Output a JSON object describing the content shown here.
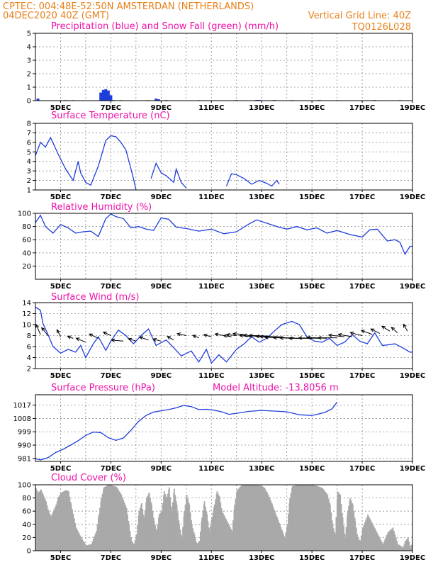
{
  "header": {
    "line1_left": "CPTEC:   004:48E-52:50N   AMSTERDAN (NETHERLANDS)",
    "line2_left": "04DEC2020 40Z (GMT)",
    "line2_right": "Vertical Grid Line: 40Z",
    "model_id": "TQ0126L028"
  },
  "colors": {
    "blue": "#1f3ddb",
    "green": "#2ab52a",
    "magenta": "#ee11aa",
    "orange": "#e8801a",
    "cloud": "#a9a9a9",
    "arrow": "#000000"
  },
  "x_tick_labels": [
    "5DEC",
    "7DEC",
    "9DEC",
    "11DEC",
    "13DEC",
    "15DEC",
    "17DEC",
    "19DEC"
  ],
  "chart_data": [
    {
      "id": "precip",
      "type": "bar",
      "title": "Precipitation (blue) and Snow Fall (green) (mm/h)",
      "x_unit": "day of Dec 2020 (GMT)",
      "xlim": [
        4.0,
        19.0
      ],
      "ylim": [
        0,
        5
      ],
      "yticks": [
        0,
        1,
        2,
        3,
        4,
        5
      ],
      "series": [
        {
          "name": "Precipitation",
          "color": "blue",
          "x": [
            4.1,
            6.6,
            6.7,
            6.8,
            6.9,
            7.0,
            8.8,
            8.9,
            12.8,
            12.9
          ],
          "values": [
            0.15,
            0.6,
            0.8,
            0.85,
            0.75,
            0.4,
            0.15,
            0.1,
            0.05,
            0.05
          ]
        },
        {
          "name": "Snow Fall",
          "color": "green",
          "x": [
            5.2,
            5.5,
            7.1,
            7.4,
            8.5,
            9.2,
            10.5,
            12.0,
            13.5,
            14.2,
            15.3,
            16.0,
            17.5,
            18.5
          ],
          "values": [
            0.04,
            0.04,
            0.05,
            0.04,
            0.04,
            0.05,
            0.04,
            0.05,
            0.05,
            0.04,
            0.05,
            0.04,
            0.05,
            0.04
          ]
        }
      ]
    },
    {
      "id": "temperature",
      "type": "line",
      "title": "Surface Temperature (nC)",
      "xlim": [
        4.0,
        19.0
      ],
      "ylim": [
        1,
        8
      ],
      "yticks": [
        1,
        2,
        3,
        4,
        5,
        6,
        7,
        8
      ],
      "clip_below": true,
      "series": [
        {
          "color": "blue",
          "x": [
            4.0,
            4.2,
            4.4,
            4.6,
            4.9,
            5.2,
            5.5,
            5.7,
            5.8,
            6.0,
            6.2,
            6.5,
            6.8,
            7.0,
            7.2,
            7.4,
            7.6,
            7.8,
            7.9,
            8.0,
            8.3,
            8.6,
            8.8,
            9.0,
            9.2,
            9.5,
            9.6,
            9.8,
            10.0,
            10.1,
            10.5,
            10.7,
            10.9,
            11.3,
            11.6,
            11.8,
            12.0,
            12.3,
            12.6,
            12.9,
            13.2,
            13.4,
            13.6,
            13.7,
            13.9
          ],
          "values": [
            4.6,
            6.0,
            5.5,
            6.5,
            4.8,
            3.2,
            2.0,
            4.0,
            2.8,
            1.8,
            1.5,
            3.5,
            6.2,
            6.7,
            6.6,
            6.0,
            5.2,
            3.2,
            2.2,
            1.0,
            0.5,
            2.2,
            3.8,
            2.8,
            2.5,
            1.8,
            3.2,
            1.8,
            1.2,
            0.6,
            0.8,
            1.6,
            0.7,
            0.5,
            1.4,
            2.7,
            2.6,
            2.2,
            1.6,
            2.0,
            1.7,
            1.4,
            2.0,
            1.6,
            0.8
          ]
        }
      ]
    },
    {
      "id": "humidity",
      "type": "line",
      "title": "Relative Humidity (%)",
      "xlim": [
        4.0,
        19.0
      ],
      "ylim": [
        0,
        100
      ],
      "yticks": [
        20,
        40,
        60,
        80,
        100
      ],
      "series": [
        {
          "color": "blue",
          "x": [
            4.0,
            4.2,
            4.4,
            4.7,
            5.0,
            5.3,
            5.6,
            5.9,
            6.2,
            6.5,
            6.8,
            7.0,
            7.2,
            7.5,
            7.8,
            8.1,
            8.4,
            8.7,
            9.0,
            9.3,
            9.6,
            10.0,
            10.5,
            11.0,
            11.5,
            12.0,
            12.5,
            12.8,
            13.2,
            13.6,
            14.0,
            14.4,
            14.8,
            15.2,
            15.6,
            16.0,
            16.5,
            17.0,
            17.3,
            17.6,
            18.0,
            18.3,
            18.5,
            18.7,
            18.9,
            19.0
          ],
          "values": [
            86,
            97,
            80,
            70,
            83,
            78,
            70,
            72,
            73,
            65,
            92,
            99,
            95,
            92,
            78,
            80,
            76,
            74,
            93,
            91,
            79,
            77,
            73,
            76,
            69,
            72,
            84,
            90,
            85,
            80,
            76,
            80,
            75,
            78,
            70,
            74,
            68,
            64,
            75,
            76,
            58,
            60,
            56,
            38,
            50,
            50
          ]
        }
      ]
    },
    {
      "id": "wind",
      "type": "line",
      "title": "Surface Wind (m/s)",
      "xlim": [
        4.0,
        19.0
      ],
      "ylim": [
        2,
        14
      ],
      "yticks": [
        2,
        4,
        6,
        8,
        10,
        12,
        14
      ],
      "series": [
        {
          "color": "blue",
          "x": [
            4.0,
            4.2,
            4.3,
            4.5,
            4.7,
            5.0,
            5.3,
            5.6,
            5.8,
            6.0,
            6.3,
            6.5,
            6.8,
            7.0,
            7.3,
            7.6,
            7.9,
            8.2,
            8.5,
            8.8,
            9.2,
            9.5,
            9.8,
            10.2,
            10.5,
            10.8,
            11.0,
            11.3,
            11.6,
            12.0,
            12.3,
            12.6,
            12.9,
            13.2,
            13.5,
            13.8,
            14.2,
            14.5,
            14.8,
            15.1,
            15.4,
            15.7,
            16.0,
            16.3,
            16.6,
            16.9,
            17.2,
            17.5,
            17.8,
            18.0,
            18.3,
            18.6,
            18.9,
            19.0
          ],
          "values": [
            13.2,
            12.6,
            10.2,
            8.2,
            6.0,
            4.8,
            5.5,
            5.0,
            6.2,
            4.0,
            6.5,
            7.8,
            5.3,
            7.0,
            9.0,
            8.0,
            6.5,
            8.0,
            9.2,
            6.2,
            7.2,
            5.8,
            4.3,
            5.2,
            3.2,
            5.5,
            3.0,
            4.5,
            3.2,
            5.5,
            6.5,
            7.8,
            6.8,
            7.5,
            8.8,
            10.0,
            10.6,
            10.0,
            7.8,
            7.0,
            6.8,
            7.5,
            6.2,
            6.8,
            8.2,
            7.0,
            6.5,
            8.5,
            6.2,
            6.3,
            6.5,
            5.8,
            5.0,
            5.0
          ]
        }
      ],
      "wind_vectors": {
        "x": [
          4.2,
          4.5,
          5.0,
          5.5,
          6.0,
          6.5,
          7.0,
          7.5,
          8.0,
          8.5,
          9.0,
          9.5,
          10.0,
          10.5,
          11.0,
          11.5,
          11.8,
          12.0,
          12.3,
          12.6,
          13.0,
          13.3,
          13.6,
          13.8,
          14.0,
          14.3,
          14.6,
          15.0,
          15.3,
          15.6,
          16.0,
          16.3,
          16.6,
          17.0,
          17.4,
          17.7,
          18.1,
          18.4,
          18.8
        ],
        "u": [
          -0.22,
          -0.32,
          -0.18,
          -0.28,
          -0.48,
          -0.45,
          -0.38,
          -0.6,
          -0.38,
          -0.45,
          -0.4,
          -0.32,
          -0.45,
          -0.3,
          -0.38,
          -0.45,
          -0.4,
          -0.5,
          -0.55,
          -0.6,
          -0.9,
          -1.0,
          -1.05,
          -1.1,
          -1.1,
          -1.05,
          -1.1,
          -1.15,
          -1.05,
          -1.0,
          -0.95,
          -0.8,
          -0.7,
          -0.6,
          -0.55,
          -0.45,
          -0.4,
          -0.3,
          -0.2
        ],
        "v": [
          0.5,
          0.4,
          0.35,
          0.1,
          0.2,
          0.22,
          0.18,
          0.05,
          0.12,
          0.15,
          0.1,
          0.18,
          0.1,
          0.12,
          0.1,
          0.08,
          0.06,
          0.05,
          0.04,
          0.06,
          0.08,
          0.04,
          0.02,
          0.0,
          0.02,
          0.0,
          0.02,
          0.0,
          0.02,
          0.05,
          0.0,
          0.08,
          0.12,
          0.15,
          0.2,
          0.22,
          0.25,
          0.28,
          0.35
        ],
        "ybase": [
          8.2,
          8.0,
          7.8,
          7.5,
          6.8,
          7.5,
          8.0,
          7.0,
          7.0,
          7.2,
          7.0,
          7.2,
          8.0,
          7.6,
          7.8,
          8.0,
          7.8,
          8.0,
          8.2,
          7.8,
          7.8,
          7.9,
          7.8,
          7.8,
          7.6,
          7.6,
          7.5,
          7.5,
          7.5,
          7.5,
          7.6,
          7.8,
          7.8,
          8.0,
          8.2,
          8.4,
          8.8,
          8.5,
          8.8
        ]
      }
    },
    {
      "id": "pressure",
      "type": "line",
      "title": "Surface Pressure (hPa)",
      "subtitle": "Model Altitude: -13.8056 m",
      "xlim": [
        4.0,
        19.0
      ],
      "ylim": [
        979,
        1024
      ],
      "yticks": [
        981,
        990,
        999,
        1008,
        1017
      ],
      "series": [
        {
          "color": "blue",
          "x": [
            4.0,
            4.2,
            4.5,
            4.8,
            5.1,
            5.4,
            5.7,
            6.0,
            6.3,
            6.6,
            6.9,
            7.2,
            7.5,
            7.8,
            8.1,
            8.4,
            8.7,
            9.0,
            9.3,
            9.6,
            9.9,
            10.2,
            10.5,
            10.8,
            11.1,
            11.4,
            11.7,
            12.0,
            12.5,
            13.0,
            13.5,
            14.0,
            14.5,
            15.0,
            15.5,
            15.8,
            16.0
          ],
          "values": [
            980.8,
            980.0,
            981.5,
            985.0,
            987.2,
            990.0,
            993.0,
            996.5,
            998.8,
            998.5,
            995.0,
            993.2,
            994.8,
            1000.0,
            1006.0,
            1010.0,
            1012.3,
            1013.2,
            1014.0,
            1015.2,
            1016.8,
            1016.0,
            1014.0,
            1014.2,
            1013.6,
            1012.5,
            1010.8,
            1011.5,
            1012.8,
            1013.4,
            1013.0,
            1012.5,
            1010.5,
            1010.0,
            1012.0,
            1014.5,
            1019.0
          ]
        }
      ]
    },
    {
      "id": "cloud",
      "type": "area",
      "title": "Cloud Cover (%)",
      "xlim": [
        4.0,
        19.0
      ],
      "ylim": [
        0,
        100
      ],
      "yticks": [
        0,
        20,
        40,
        60,
        80,
        100
      ],
      "series": [
        {
          "color": "cloud",
          "x": [
            4.0,
            4.1,
            4.2,
            4.4,
            4.5,
            4.6,
            4.8,
            4.9,
            5.0,
            5.2,
            5.3,
            5.4,
            5.6,
            5.8,
            6.0,
            6.2,
            6.4,
            6.5,
            6.6,
            6.7,
            6.8,
            6.9,
            7.0,
            7.2,
            7.4,
            7.6,
            7.7,
            7.8,
            7.9,
            8.0,
            8.1,
            8.2,
            8.3,
            8.4,
            8.5,
            8.6,
            8.7,
            8.8,
            8.9,
            9.0,
            9.1,
            9.2,
            9.3,
            9.4,
            9.5,
            9.6,
            9.7,
            9.8,
            9.9,
            10.0,
            10.1,
            10.2,
            10.3,
            10.4,
            10.5,
            10.6,
            10.7,
            10.8,
            10.9,
            11.0,
            11.1,
            11.2,
            11.3,
            11.4,
            11.6,
            11.8,
            11.9,
            12.0,
            12.2,
            12.4,
            12.6,
            12.8,
            13.0,
            13.1,
            13.2,
            13.3,
            13.4,
            13.5,
            13.6,
            13.7,
            13.8,
            13.9,
            14.0,
            14.1,
            14.2,
            14.4,
            14.6,
            14.8,
            15.0,
            15.2,
            15.4,
            15.6,
            15.7,
            15.8,
            15.9,
            16.0,
            16.1,
            16.2,
            16.3,
            16.4,
            16.5,
            16.6,
            16.7,
            16.8,
            16.9,
            17.0,
            17.2,
            17.4,
            17.6,
            17.8,
            18.0,
            18.2,
            18.4,
            18.6,
            18.7,
            18.8,
            18.9,
            19.0
          ],
          "values": [
            95,
            88,
            93,
            75,
            60,
            52,
            70,
            82,
            88,
            92,
            90,
            70,
            35,
            20,
            8,
            10,
            30,
            55,
            80,
            96,
            98,
            100,
            99,
            97,
            85,
            65,
            40,
            15,
            10,
            25,
            60,
            72,
            50,
            80,
            88,
            70,
            45,
            30,
            55,
            60,
            90,
            80,
            96,
            60,
            94,
            70,
            40,
            20,
            60,
            85,
            70,
            40,
            25,
            10,
            15,
            50,
            75,
            55,
            30,
            50,
            70,
            90,
            82,
            60,
            45,
            30,
            70,
            92,
            100,
            100,
            100,
            100,
            98,
            95,
            88,
            80,
            70,
            60,
            50,
            40,
            30,
            20,
            40,
            80,
            98,
            100,
            100,
            100,
            100,
            98,
            95,
            85,
            70,
            40,
            25,
            90,
            85,
            50,
            20,
            60,
            80,
            70,
            45,
            20,
            15,
            35,
            55,
            40,
            25,
            10,
            28,
            35,
            10,
            5,
            15,
            20,
            5,
            15
          ]
        }
      ]
    }
  ]
}
